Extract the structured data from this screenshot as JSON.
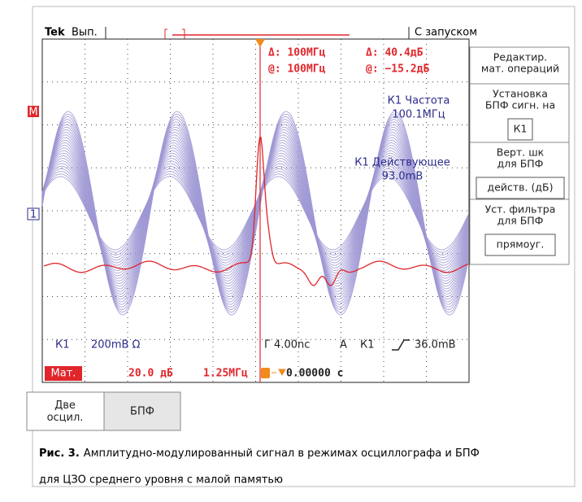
{
  "status": {
    "brand": "Tek",
    "state": "Вып.",
    "trigger_mode": "С запуском"
  },
  "cursors": {
    "delta_freq": "Δ: 100МГц",
    "delta_level": "Δ: 40.4дБ",
    "at_freq": "@: 100МГц",
    "at_level": "@: −15.2дБ"
  },
  "measurements": [
    {
      "label": "К1 Частота",
      "value": "100.1МГц"
    },
    {
      "label": "К1 Действующее",
      "value": "93.0mВ"
    }
  ],
  "markers": {
    "math": "M",
    "channel": "1"
  },
  "readouts": {
    "channel": "К1",
    "scale": "200mВ Ω",
    "timebase": "Г 4.00nc",
    "trigger_label": "A",
    "trigger_source": "К1",
    "trigger_level": "36.0mВ",
    "math_label": "Мат.",
    "math_scale": "20.0 дБ",
    "math_span": "1.25МГц",
    "trigger_position": "0.00000 с"
  },
  "menu": [
    {
      "title": [
        "Редактир.",
        "мат. операций"
      ]
    },
    {
      "title": [
        "Установка",
        "БПФ сигн. на"
      ],
      "option": "К1"
    },
    {
      "title": [
        "Верт. шк",
        "для БПФ"
      ],
      "option": "действ. (дБ)"
    },
    {
      "title": [
        "Уст. фильтра",
        "для БПФ"
      ],
      "option": "прямоуг."
    }
  ],
  "buttons": [
    "Две осцил.",
    "БПФ"
  ],
  "caption": {
    "label": "Рис. 3.",
    "lines": [
      "Амплитудно-модулированный сигнал в режимах осциллографа и БПФ",
      "для ЦЗО среднего уровня с малой памятью"
    ]
  }
}
